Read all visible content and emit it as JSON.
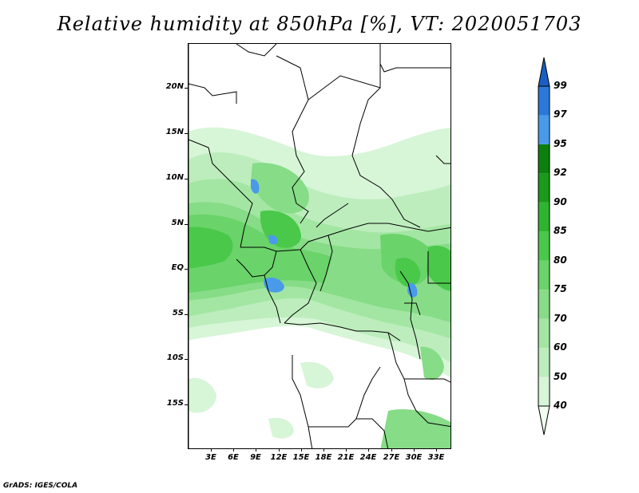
{
  "title": "Relative humidity at 850hPa [%], VT: 2020051703",
  "credit": "GrADS: IGES/COLA",
  "latitude_labels": [
    "20N",
    "15N",
    "10N",
    "5N",
    "EQ",
    "5S",
    "10S",
    "15S"
  ],
  "longitude_labels": [
    "3E",
    "6E",
    "9E",
    "12E",
    "15E",
    "18E",
    "21E",
    "24E",
    "27E",
    "30E",
    "33E"
  ],
  "colorbar": {
    "levels": [
      "40",
      "50",
      "60",
      "70",
      "75",
      "80",
      "85",
      "90",
      "92",
      "95",
      "97",
      "99"
    ],
    "colors": [
      "#f0fff0",
      "#d7f5d7",
      "#bdedbd",
      "#a3e6a3",
      "#87dc87",
      "#6ad36a",
      "#4ac84a",
      "#2fb42f",
      "#1a9a1a",
      "#0c800c",
      "#4a9aea",
      "#2c78d8",
      "#1a5ec4"
    ]
  },
  "colors": {
    "land_border": "#000000",
    "background": "#ffffff"
  }
}
